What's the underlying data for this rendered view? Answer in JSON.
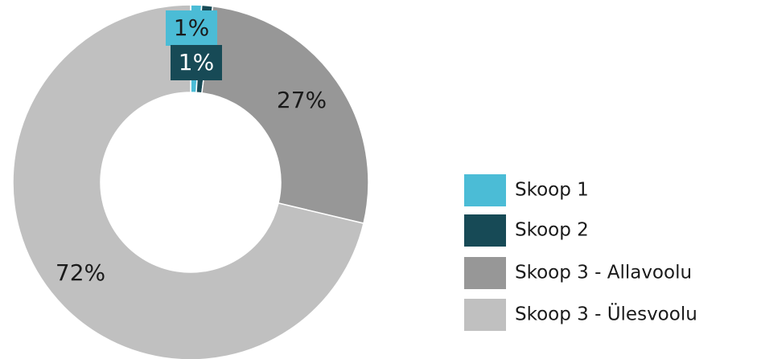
{
  "chart_data": {
    "type": "donut",
    "categories": [
      "Skoop 1",
      "Skoop 2",
      "Skoop  3 - Allavoolu",
      "Skoop 3 - Ülesvoolu"
    ],
    "values": [
      1,
      1,
      27,
      72
    ],
    "value_labels": [
      "1%",
      "1%",
      "27%",
      "72%"
    ],
    "colors": [
      "#4bbcd6",
      "#174a56",
      "#979797",
      "#c0c0c0"
    ],
    "legend": "right"
  }
}
